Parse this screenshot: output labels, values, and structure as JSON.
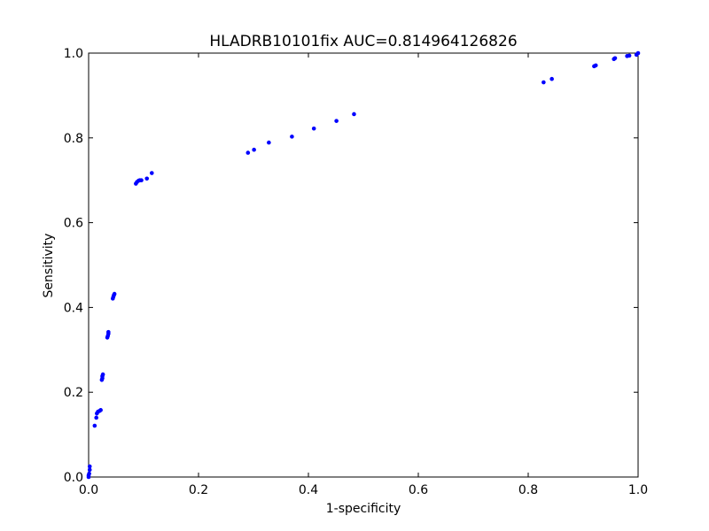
{
  "chart_data": {
    "type": "scatter",
    "title": "HLADRB10101fix AUC=0.814964126826",
    "xlabel": "1-specificity",
    "ylabel": "Sensitivity",
    "xlim": [
      0.0,
      1.0
    ],
    "ylim": [
      0.0,
      1.0
    ],
    "xticks": [
      "0.0",
      "0.2",
      "0.4",
      "0.6",
      "0.8",
      "1.0"
    ],
    "yticks": [
      "0.0",
      "0.2",
      "0.4",
      "0.6",
      "0.8",
      "1.0"
    ],
    "grid": false,
    "point_color": "#0000ff",
    "points": [
      [
        0.0,
        0.0
      ],
      [
        0.0,
        0.004
      ],
      [
        0.001,
        0.008
      ],
      [
        0.002,
        0.017
      ],
      [
        0.002,
        0.025
      ],
      [
        0.011,
        0.121
      ],
      [
        0.014,
        0.14
      ],
      [
        0.015,
        0.15
      ],
      [
        0.017,
        0.154
      ],
      [
        0.02,
        0.156
      ],
      [
        0.022,
        0.158
      ],
      [
        0.024,
        0.229
      ],
      [
        0.025,
        0.233
      ],
      [
        0.025,
        0.238
      ],
      [
        0.026,
        0.242
      ],
      [
        0.034,
        0.329
      ],
      [
        0.035,
        0.333
      ],
      [
        0.036,
        0.338
      ],
      [
        0.036,
        0.342
      ],
      [
        0.044,
        0.421
      ],
      [
        0.045,
        0.425
      ],
      [
        0.046,
        0.429
      ],
      [
        0.047,
        0.432
      ],
      [
        0.086,
        0.692
      ],
      [
        0.088,
        0.696
      ],
      [
        0.091,
        0.699
      ],
      [
        0.093,
        0.7
      ],
      [
        0.096,
        0.7
      ],
      [
        0.106,
        0.704
      ],
      [
        0.115,
        0.717
      ],
      [
        0.29,
        0.765
      ],
      [
        0.301,
        0.772
      ],
      [
        0.328,
        0.789
      ],
      [
        0.37,
        0.803
      ],
      [
        0.41,
        0.822
      ],
      [
        0.451,
        0.84
      ],
      [
        0.483,
        0.856
      ],
      [
        0.828,
        0.931
      ],
      [
        0.843,
        0.939
      ],
      [
        0.92,
        0.969
      ],
      [
        0.923,
        0.971
      ],
      [
        0.956,
        0.986
      ],
      [
        0.958,
        0.988
      ],
      [
        0.98,
        0.993
      ],
      [
        0.984,
        0.994
      ],
      [
        0.997,
        0.996
      ],
      [
        1.0,
        1.0
      ]
    ]
  }
}
